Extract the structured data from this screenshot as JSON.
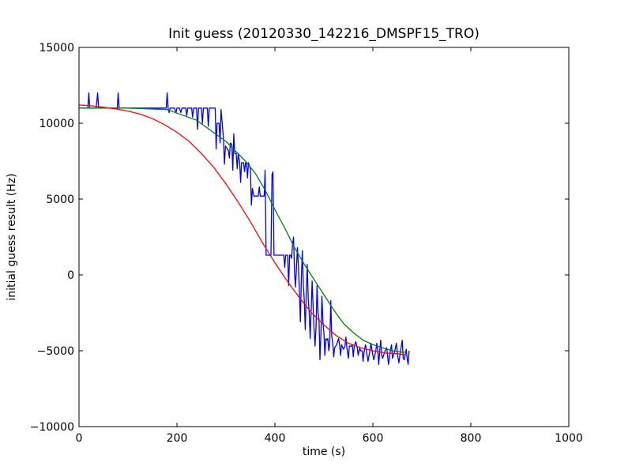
{
  "chart_data": {
    "type": "line",
    "title": "Init guess (20120330_142216_DMSPF15_TRO)",
    "xlabel": "time (s)",
    "ylabel": "initial guess result (Hz)",
    "xlim": [
      0,
      1000
    ],
    "ylim": [
      -10000,
      15000
    ],
    "x_ticks": [
      0,
      200,
      400,
      600,
      800,
      1000
    ],
    "y_ticks": [
      -10000,
      -5000,
      0,
      5000,
      10000,
      15000
    ],
    "x_tick_labels": [
      "0",
      "200",
      "400",
      "600",
      "800",
      "1000"
    ],
    "y_tick_labels": [
      "−10000",
      "−5000",
      "0",
      "5000",
      "10000",
      "15000"
    ],
    "grid": false,
    "series": [
      {
        "color": "#0000ff",
        "points": [
          [
            0,
            11000
          ],
          [
            10,
            11000
          ],
          [
            18,
            11000
          ],
          [
            20,
            12000
          ],
          [
            22,
            11000
          ],
          [
            35,
            11000
          ],
          [
            38,
            12000
          ],
          [
            40,
            11000
          ],
          [
            60,
            11000
          ],
          [
            78,
            11000
          ],
          [
            80,
            12000
          ],
          [
            82,
            11000
          ],
          [
            120,
            11000
          ],
          [
            150,
            11000
          ],
          [
            178,
            11000
          ],
          [
            180,
            12000
          ],
          [
            182,
            11000
          ],
          [
            184,
            10700
          ],
          [
            186,
            11000
          ],
          [
            195,
            11000
          ],
          [
            198,
            10700
          ],
          [
            200,
            11000
          ],
          [
            205,
            11000
          ],
          [
            208,
            10700
          ],
          [
            210,
            11000
          ],
          [
            218,
            11000
          ],
          [
            220,
            10500
          ],
          [
            222,
            11000
          ],
          [
            230,
            11000
          ],
          [
            232,
            10400
          ],
          [
            234,
            11000
          ],
          [
            240,
            11000
          ],
          [
            242,
            9600
          ],
          [
            244,
            11000
          ],
          [
            250,
            11000
          ],
          [
            252,
            10000
          ],
          [
            254,
            11000
          ],
          [
            262,
            11000
          ],
          [
            264,
            9800
          ],
          [
            266,
            11000
          ],
          [
            278,
            11000
          ],
          [
            280,
            8300
          ],
          [
            282,
            10000
          ],
          [
            286,
            10000
          ],
          [
            288,
            8700
          ],
          [
            290,
            10900
          ],
          [
            295,
            9000
          ],
          [
            297,
            7300
          ],
          [
            299,
            8500
          ],
          [
            305,
            8200
          ],
          [
            307,
            7700
          ],
          [
            309,
            8700
          ],
          [
            312,
            8600
          ],
          [
            314,
            6900
          ],
          [
            316,
            9300
          ],
          [
            318,
            8000
          ],
          [
            321,
            8000
          ],
          [
            323,
            7000
          ],
          [
            325,
            8000
          ],
          [
            328,
            7400
          ],
          [
            330,
            6100
          ],
          [
            332,
            7400
          ],
          [
            336,
            7400
          ],
          [
            338,
            6800
          ],
          [
            340,
            7400
          ],
          [
            342,
            7400
          ],
          [
            344,
            6400
          ],
          [
            346,
            7400
          ],
          [
            350,
            7000
          ],
          [
            352,
            4600
          ],
          [
            354,
            5700
          ],
          [
            357,
            5200
          ],
          [
            362,
            5200
          ],
          [
            366,
            5200
          ],
          [
            368,
            5800
          ],
          [
            370,
            5200
          ],
          [
            378,
            5200
          ],
          [
            380,
            6900
          ],
          [
            382,
            1300
          ],
          [
            386,
            1300
          ],
          [
            389,
            1300
          ],
          [
            392,
            1300
          ],
          [
            394,
            6600
          ],
          [
            396,
            6800
          ],
          [
            398,
            1300
          ],
          [
            402,
            1300
          ],
          [
            410,
            1300
          ],
          [
            415,
            1300
          ],
          [
            418,
            1300
          ],
          [
            420,
            500
          ],
          [
            422,
            1300
          ],
          [
            426,
            1300
          ],
          [
            428,
            -700
          ],
          [
            430,
            1300
          ],
          [
            432,
            1300
          ],
          [
            434,
            1100
          ],
          [
            436,
            2000
          ],
          [
            438,
            2500
          ],
          [
            440,
            200
          ],
          [
            442,
            -800
          ],
          [
            444,
            500
          ],
          [
            446,
            1800
          ],
          [
            448,
            500
          ],
          [
            450,
            -1100
          ],
          [
            452,
            -3100
          ],
          [
            454,
            -200
          ],
          [
            456,
            1600
          ],
          [
            458,
            -700
          ],
          [
            460,
            -1700
          ],
          [
            462,
            -3600
          ],
          [
            464,
            -1200
          ],
          [
            466,
            700
          ],
          [
            468,
            -1600
          ],
          [
            470,
            -2500
          ],
          [
            472,
            -4200
          ],
          [
            474,
            -2300
          ],
          [
            476,
            -400
          ],
          [
            478,
            -2200
          ],
          [
            480,
            -3600
          ],
          [
            482,
            -4700
          ],
          [
            484,
            -3400
          ],
          [
            486,
            -700
          ],
          [
            488,
            -2500
          ],
          [
            490,
            -2900
          ],
          [
            492,
            -5600
          ],
          [
            494,
            -3800
          ],
          [
            496,
            -1400
          ],
          [
            498,
            -3100
          ],
          [
            500,
            -3800
          ],
          [
            502,
            -5300
          ],
          [
            504,
            -4200
          ],
          [
            506,
            -4300
          ],
          [
            508,
            -4200
          ],
          [
            510,
            -5000
          ],
          [
            512,
            -4500
          ],
          [
            514,
            -1700
          ],
          [
            516,
            -4000
          ],
          [
            518,
            -4500
          ],
          [
            520,
            -5400
          ],
          [
            522,
            -4800
          ],
          [
            526,
            -4600
          ],
          [
            530,
            -4200
          ],
          [
            532,
            -4600
          ],
          [
            534,
            -5300
          ],
          [
            536,
            -4600
          ],
          [
            540,
            -4900
          ],
          [
            543,
            -4700
          ],
          [
            545,
            -4100
          ],
          [
            547,
            -4800
          ],
          [
            550,
            -5500
          ],
          [
            552,
            -4700
          ],
          [
            556,
            -4700
          ],
          [
            558,
            -4600
          ],
          [
            560,
            -5400
          ],
          [
            562,
            -4700
          ],
          [
            565,
            -4400
          ],
          [
            568,
            -4800
          ],
          [
            570,
            -5300
          ],
          [
            573,
            -4800
          ],
          [
            575,
            -5000
          ],
          [
            578,
            -5000
          ],
          [
            580,
            -5700
          ],
          [
            582,
            -5100
          ],
          [
            585,
            -4600
          ],
          [
            588,
            -5300
          ],
          [
            590,
            -5700
          ],
          [
            594,
            -5000
          ],
          [
            596,
            -4500
          ],
          [
            600,
            -5300
          ],
          [
            602,
            -5600
          ],
          [
            606,
            -5000
          ],
          [
            608,
            -4500
          ],
          [
            610,
            -5000
          ],
          [
            612,
            -5900
          ],
          [
            614,
            -5000
          ],
          [
            616,
            -4300
          ],
          [
            618,
            -5300
          ],
          [
            620,
            -5500
          ],
          [
            625,
            -5000
          ],
          [
            628,
            -4800
          ],
          [
            630,
            -5300
          ],
          [
            632,
            -5900
          ],
          [
            635,
            -5100
          ],
          [
            638,
            -4600
          ],
          [
            640,
            -5500
          ],
          [
            644,
            -5100
          ],
          [
            648,
            -4500
          ],
          [
            650,
            -5200
          ],
          [
            653,
            -5800
          ],
          [
            656,
            -5100
          ],
          [
            660,
            -4300
          ],
          [
            662,
            -5500
          ],
          [
            664,
            -5600
          ],
          [
            668,
            -4900
          ],
          [
            670,
            -5500
          ],
          [
            672,
            -5900
          ],
          [
            674,
            -5000
          ]
        ]
      },
      {
        "color": "#008000",
        "points": [
          [
            0,
            11000
          ],
          [
            100,
            11000
          ],
          [
            180,
            10900
          ],
          [
            240,
            10200
          ],
          [
            300,
            8800
          ],
          [
            340,
            7500
          ],
          [
            360,
            6700
          ],
          [
            380,
            5600
          ],
          [
            400,
            4300
          ],
          [
            420,
            3100
          ],
          [
            440,
            1800
          ],
          [
            460,
            700
          ],
          [
            480,
            -300
          ],
          [
            500,
            -1300
          ],
          [
            520,
            -2300
          ],
          [
            540,
            -3200
          ],
          [
            560,
            -3800
          ],
          [
            580,
            -4300
          ],
          [
            600,
            -4600
          ],
          [
            620,
            -4800
          ],
          [
            640,
            -5000
          ],
          [
            660,
            -5100
          ],
          [
            670,
            -5100
          ]
        ]
      },
      {
        "color": "#ff0000",
        "points": [
          [
            0,
            11200
          ],
          [
            25,
            11150
          ],
          [
            50,
            11050
          ],
          [
            75,
            10950
          ],
          [
            100,
            10800
          ],
          [
            125,
            10600
          ],
          [
            150,
            10300
          ],
          [
            175,
            9900
          ],
          [
            200,
            9400
          ],
          [
            225,
            8800
          ],
          [
            250,
            8000
          ],
          [
            275,
            7100
          ],
          [
            300,
            6000
          ],
          [
            325,
            4800
          ],
          [
            350,
            3500
          ],
          [
            375,
            2100
          ],
          [
            400,
            800
          ],
          [
            425,
            -400
          ],
          [
            450,
            -1500
          ],
          [
            475,
            -2500
          ],
          [
            500,
            -3300
          ],
          [
            525,
            -4000
          ],
          [
            550,
            -4500
          ],
          [
            575,
            -4800
          ],
          [
            600,
            -5000
          ],
          [
            625,
            -5150
          ],
          [
            650,
            -5200
          ],
          [
            665,
            -5250
          ]
        ]
      }
    ]
  }
}
